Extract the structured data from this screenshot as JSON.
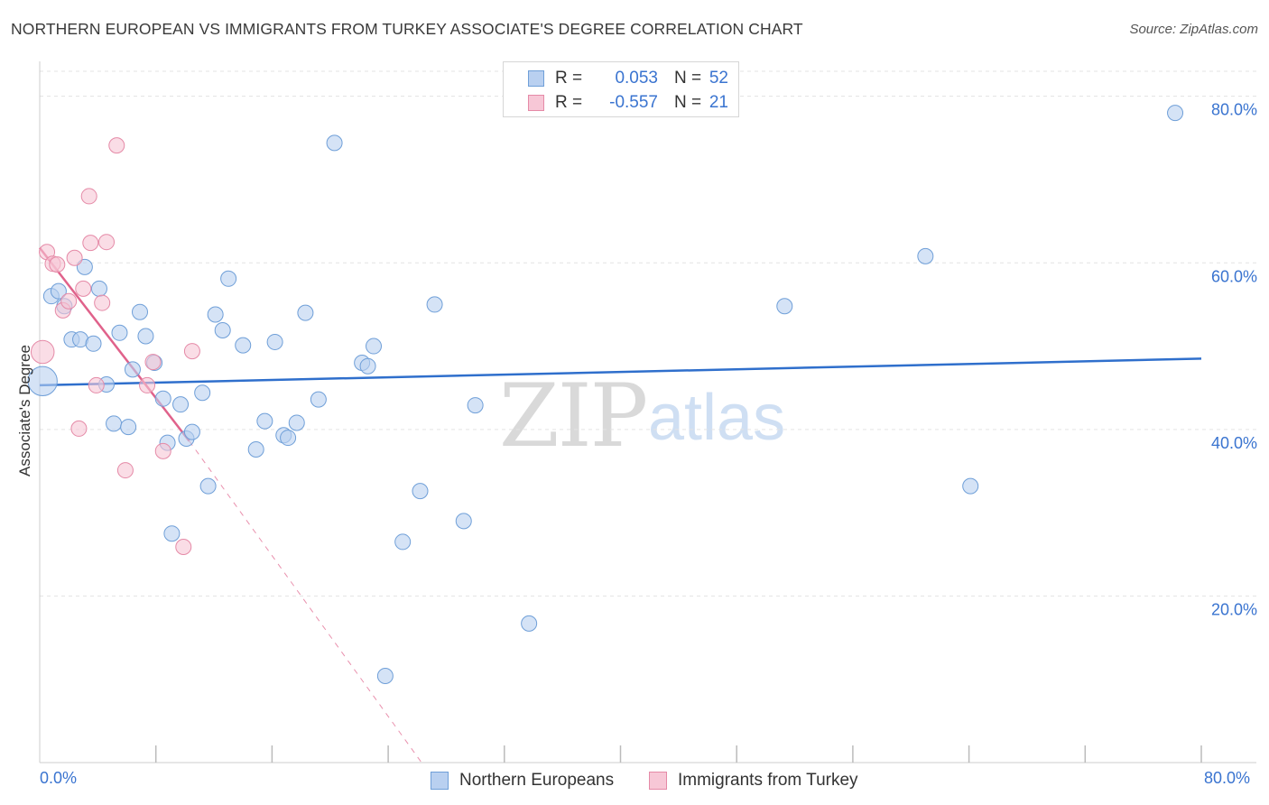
{
  "title": "NORTHERN EUROPEAN VS IMMIGRANTS FROM TURKEY ASSOCIATE'S DEGREE CORRELATION CHART",
  "source": "Source: ZipAtlas.com",
  "watermark": {
    "zip": "ZIP",
    "atlas": "atlas"
  },
  "legend_top": {
    "rows": [
      {
        "r_label": "R =",
        "r_value": "0.053",
        "n_label": "N =",
        "n_value": "52"
      },
      {
        "r_label": "R =",
        "r_value": "-0.557",
        "n_label": "N =",
        "n_value": "21"
      }
    ]
  },
  "legend_bottom": [
    "Northern Europeans",
    "Immigrants from Turkey"
  ],
  "x_tick_labels": {
    "left": "0.0%",
    "right": "80.0%"
  },
  "colors": {
    "blue_fill": "#b9d0f0",
    "blue_stroke": "#6f9fd8",
    "blue_line": "#2f6fcc",
    "pink_fill": "#f7c7d6",
    "pink_stroke": "#e58aa7",
    "pink_line": "#e0628b",
    "tick_text": "#3a74d0",
    "grid": "#e3e3e3"
  },
  "chart_data": {
    "type": "scatter",
    "title": "NORTHERN EUROPEAN VS IMMIGRANTS FROM TURKEY ASSOCIATE'S DEGREE CORRELATION CHART",
    "xlabel": "",
    "ylabel": "Associate's Degree",
    "xlim": [
      0,
      80
    ],
    "ylim": [
      0,
      83
    ],
    "y_ticks": [
      20,
      40,
      60,
      80
    ],
    "y_tick_labels": [
      "20.0%",
      "40.0%",
      "60.0%",
      "80.0%"
    ],
    "grid": true,
    "legend_position": "top-center",
    "series": [
      {
        "name": "Northern Europeans",
        "color": "blue",
        "R": 0.053,
        "N": 52,
        "points": [
          [
            0.2,
            45.8,
            1.9
          ],
          [
            0.8,
            56.0,
            1
          ],
          [
            1.3,
            56.6,
            1
          ],
          [
            1.7,
            54.8,
            1
          ],
          [
            2.2,
            50.8,
            1
          ],
          [
            2.8,
            50.8,
            1
          ],
          [
            3.1,
            59.5,
            1
          ],
          [
            3.7,
            50.3,
            1
          ],
          [
            4.1,
            56.9,
            1
          ],
          [
            4.6,
            45.4,
            1
          ],
          [
            5.1,
            40.7,
            1
          ],
          [
            5.5,
            51.6,
            1
          ],
          [
            6.1,
            40.3,
            1
          ],
          [
            6.4,
            47.2,
            1
          ],
          [
            6.9,
            54.1,
            1
          ],
          [
            7.3,
            51.2,
            1
          ],
          [
            7.9,
            48.0,
            1
          ],
          [
            8.5,
            43.7,
            1
          ],
          [
            8.8,
            38.4,
            1
          ],
          [
            9.1,
            27.5,
            1
          ],
          [
            9.7,
            43.0,
            1
          ],
          [
            10.1,
            38.9,
            1
          ],
          [
            10.5,
            39.7,
            1
          ],
          [
            11.2,
            44.4,
            1
          ],
          [
            11.6,
            33.2,
            1
          ],
          [
            12.1,
            53.8,
            1
          ],
          [
            12.6,
            51.9,
            1
          ],
          [
            13.0,
            58.1,
            1
          ],
          [
            14.0,
            50.1,
            1
          ],
          [
            14.9,
            37.6,
            1
          ],
          [
            15.5,
            41.0,
            1
          ],
          [
            16.2,
            50.5,
            1
          ],
          [
            16.8,
            39.3,
            1
          ],
          [
            17.1,
            39.0,
            1
          ],
          [
            17.7,
            40.8,
            1
          ],
          [
            18.3,
            54.0,
            1
          ],
          [
            19.2,
            43.6,
            1
          ],
          [
            20.3,
            74.4,
            1
          ],
          [
            22.2,
            48.0,
            1
          ],
          [
            22.6,
            47.6,
            1
          ],
          [
            23.0,
            50.0,
            1
          ],
          [
            23.8,
            10.4,
            1
          ],
          [
            25.0,
            26.5,
            1
          ],
          [
            26.2,
            32.6,
            1
          ],
          [
            27.2,
            55.0,
            1
          ],
          [
            29.2,
            29.0,
            1
          ],
          [
            30.0,
            42.9,
            1
          ],
          [
            33.7,
            16.7,
            1
          ],
          [
            51.3,
            54.8,
            1
          ],
          [
            61.0,
            60.8,
            1
          ],
          [
            64.1,
            33.2,
            1
          ],
          [
            78.2,
            78.0,
            1
          ]
        ],
        "trend": {
          "x1": 0,
          "y1": 45.3,
          "x2": 80,
          "y2": 48.5
        }
      },
      {
        "name": "Immigrants from Turkey",
        "color": "pink",
        "R": -0.557,
        "N": 21,
        "points": [
          [
            0.2,
            49.3,
            1.5
          ],
          [
            0.5,
            61.3,
            1
          ],
          [
            0.9,
            59.9,
            1
          ],
          [
            1.2,
            59.8,
            1
          ],
          [
            1.6,
            54.3,
            1
          ],
          [
            2.0,
            55.4,
            1
          ],
          [
            2.4,
            60.6,
            1
          ],
          [
            2.7,
            40.1,
            1
          ],
          [
            3.0,
            56.9,
            1
          ],
          [
            3.5,
            62.4,
            1
          ],
          [
            3.4,
            68.0,
            1
          ],
          [
            3.9,
            45.3,
            1
          ],
          [
            4.3,
            55.2,
            1
          ],
          [
            4.6,
            62.5,
            1
          ],
          [
            5.3,
            74.1,
            1
          ],
          [
            5.9,
            35.1,
            1
          ],
          [
            7.4,
            45.3,
            1
          ],
          [
            7.8,
            48.1,
            1
          ],
          [
            8.5,
            37.4,
            1
          ],
          [
            9.9,
            25.9,
            1
          ],
          [
            10.5,
            49.4,
            1
          ]
        ],
        "trend_solid": {
          "x1": 0,
          "y1": 61.8,
          "x2": 10.3,
          "y2": 38.6
        },
        "trend_dashed": {
          "x1": 10.3,
          "y1": 38.6,
          "x2": 26.3,
          "y2": 0
        }
      }
    ]
  }
}
